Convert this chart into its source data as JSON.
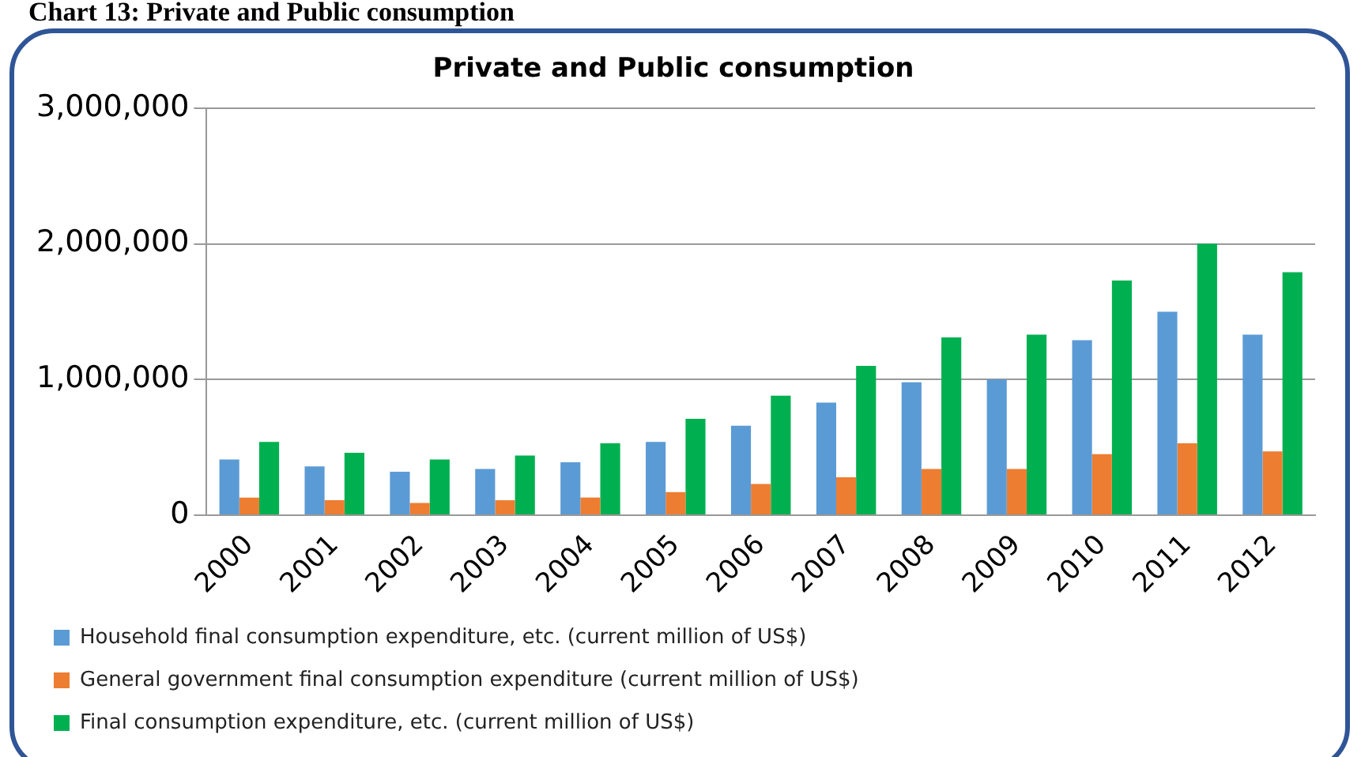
{
  "chart_data": {
    "type": "bar",
    "title": "Private and Public consumption",
    "annotations": [
      "Chart 13: Private and Public consumption"
    ],
    "categories": [
      "2000",
      "2001",
      "2002",
      "2003",
      "2004",
      "2005",
      "2006",
      "2007",
      "2008",
      "2009",
      "2010",
      "2011",
      "2012"
    ],
    "series": [
      {
        "name": "Household final consumption expenditure, etc. (current million of US$)",
        "color": "#5b9bd5",
        "values": [
          410000,
          360000,
          320000,
          340000,
          390000,
          540000,
          660000,
          830000,
          980000,
          1000000,
          1290000,
          1500000,
          1330000
        ]
      },
      {
        "name": "General government final consumption expenditure (current million of US$)",
        "color": "#ed7d31",
        "values": [
          130000,
          110000,
          90000,
          110000,
          130000,
          170000,
          230000,
          280000,
          340000,
          340000,
          450000,
          530000,
          470000
        ]
      },
      {
        "name": "Final consumption expenditure, etc. (current million of US$)",
        "color": "#00b050",
        "values": [
          540000,
          460000,
          410000,
          440000,
          530000,
          710000,
          880000,
          1100000,
          1310000,
          1330000,
          1730000,
          2000000,
          1790000
        ]
      }
    ],
    "ylim": [
      0,
      3000000
    ],
    "yticks": [
      0,
      {
        "value": 1000000,
        "label": "1,000,000"
      },
      {
        "value": 2000000,
        "label": "2,000,000"
      },
      {
        "value": 3000000,
        "label": "3,000,000"
      }
    ],
    "grid": "y",
    "legend": "bottom"
  }
}
